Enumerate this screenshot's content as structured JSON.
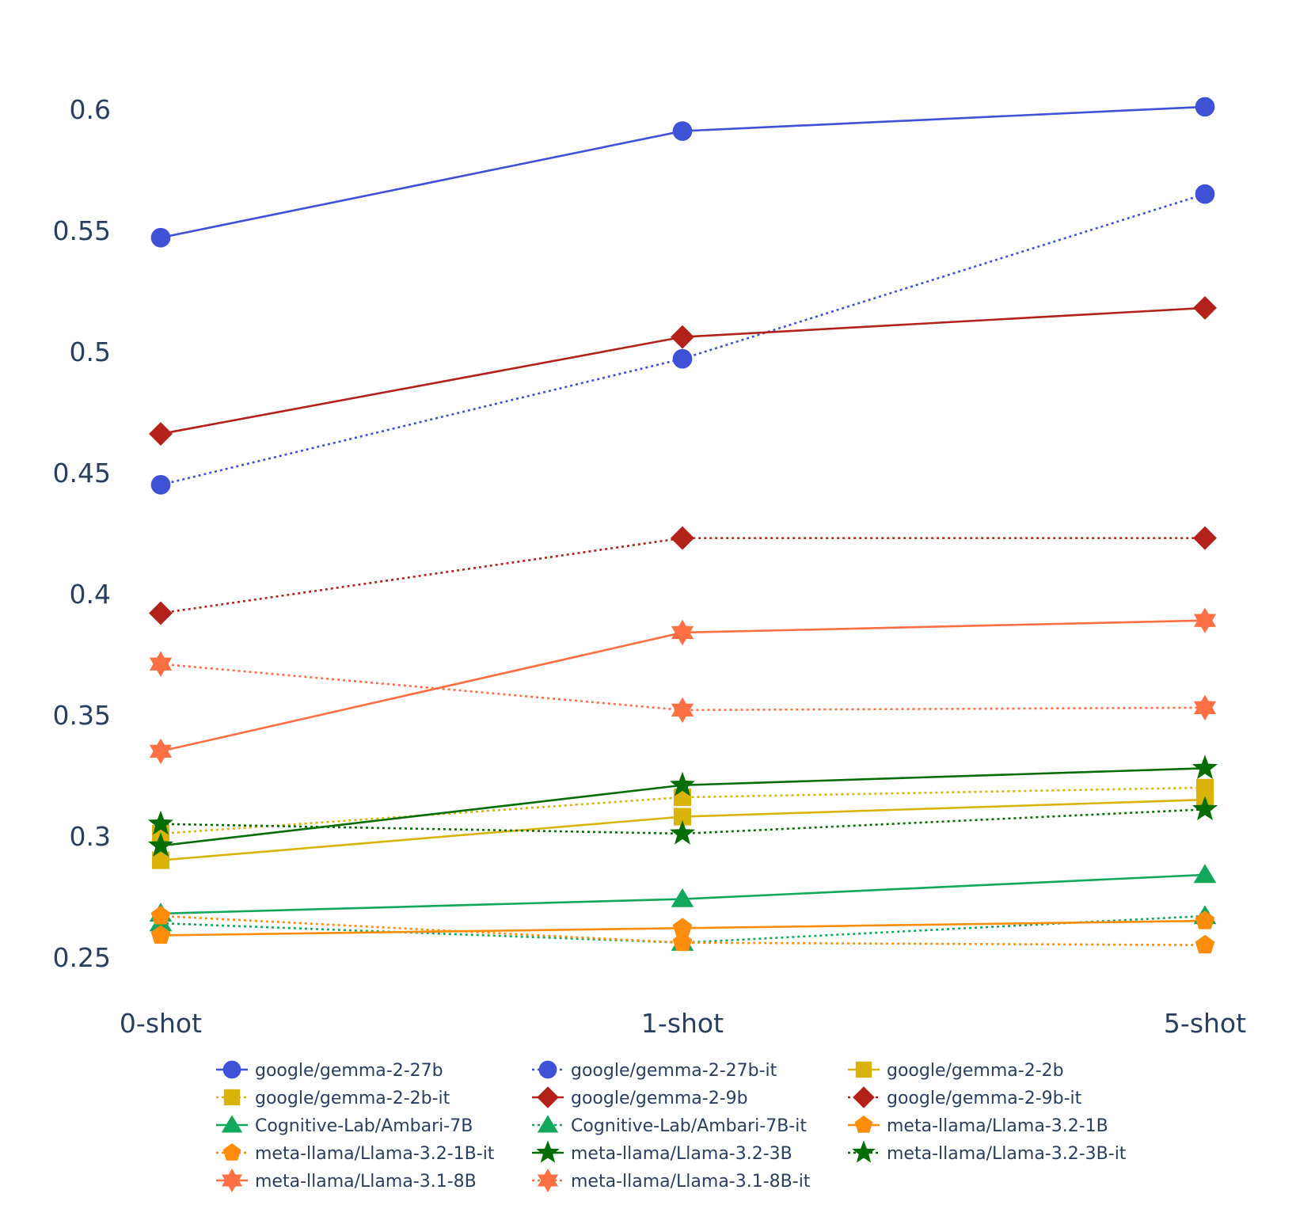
{
  "chart_data": {
    "type": "line",
    "title": "",
    "xlabel": "",
    "ylabel": "",
    "categories": [
      "0-shot",
      "1-shot",
      "5-shot"
    ],
    "ylim": [
      0.23,
      0.63
    ],
    "yticks": [
      0.25,
      0.3,
      0.35,
      0.4,
      0.45,
      0.5,
      0.55,
      0.6
    ],
    "ytick_labels": [
      "0.25",
      "0.3",
      "0.35",
      "0.4",
      "0.45",
      "0.5",
      "0.55",
      "0.6"
    ],
    "grid": false,
    "legend_position": "bottom",
    "series": [
      {
        "name": "google/gemma-2-27b",
        "values": [
          0.547,
          0.591,
          0.601
        ],
        "color": "#3f51d5",
        "dash": "solid",
        "marker": "circle"
      },
      {
        "name": "google/gemma-2-27b-it",
        "values": [
          0.445,
          0.497,
          0.565
        ],
        "color": "#3f51d5",
        "dash": "dot",
        "marker": "circle"
      },
      {
        "name": "google/gemma-2-2b",
        "values": [
          0.29,
          0.308,
          0.315
        ],
        "color": "#dab30a",
        "dash": "solid",
        "marker": "square"
      },
      {
        "name": "google/gemma-2-2b-it",
        "values": [
          0.301,
          0.316,
          0.32
        ],
        "color": "#dab30a",
        "dash": "dot",
        "marker": "square"
      },
      {
        "name": "google/gemma-2-9b",
        "values": [
          0.466,
          0.506,
          0.518
        ],
        "color": "#b2221a",
        "dash": "solid",
        "marker": "diamond"
      },
      {
        "name": "google/gemma-2-9b-it",
        "values": [
          0.392,
          0.423,
          0.423
        ],
        "color": "#b2221a",
        "dash": "dot",
        "marker": "diamond"
      },
      {
        "name": "Cognitive-Lab/Ambari-7B",
        "values": [
          0.268,
          0.274,
          0.284
        ],
        "color": "#12a85c",
        "dash": "solid",
        "marker": "triangle"
      },
      {
        "name": "Cognitive-Lab/Ambari-7B-it",
        "values": [
          0.264,
          0.256,
          0.267
        ],
        "color": "#12a85c",
        "dash": "dot",
        "marker": "triangle"
      },
      {
        "name": "meta-llama/Llama-3.2-1B",
        "values": [
          0.259,
          0.262,
          0.265
        ],
        "color": "#ff8c0a",
        "dash": "solid",
        "marker": "pentagon"
      },
      {
        "name": "meta-llama/Llama-3.2-1B-it",
        "values": [
          0.267,
          0.256,
          0.255
        ],
        "color": "#ff8c0a",
        "dash": "dot",
        "marker": "pentagon"
      },
      {
        "name": "meta-llama/Llama-3.2-3B",
        "values": [
          0.296,
          0.321,
          0.328
        ],
        "color": "#046d05",
        "dash": "solid",
        "marker": "star"
      },
      {
        "name": "meta-llama/Llama-3.2-3B-it",
        "values": [
          0.305,
          0.301,
          0.311
        ],
        "color": "#046d05",
        "dash": "dot",
        "marker": "star"
      },
      {
        "name": "meta-llama/Llama-3.1-8B",
        "values": [
          0.335,
          0.384,
          0.389
        ],
        "color": "#fe6f43",
        "dash": "solid",
        "marker": "hexagram"
      },
      {
        "name": "meta-llama/Llama-3.1-8B-it",
        "values": [
          0.371,
          0.352,
          0.353
        ],
        "color": "#fe6f43",
        "dash": "dot",
        "marker": "hexagram"
      }
    ]
  }
}
